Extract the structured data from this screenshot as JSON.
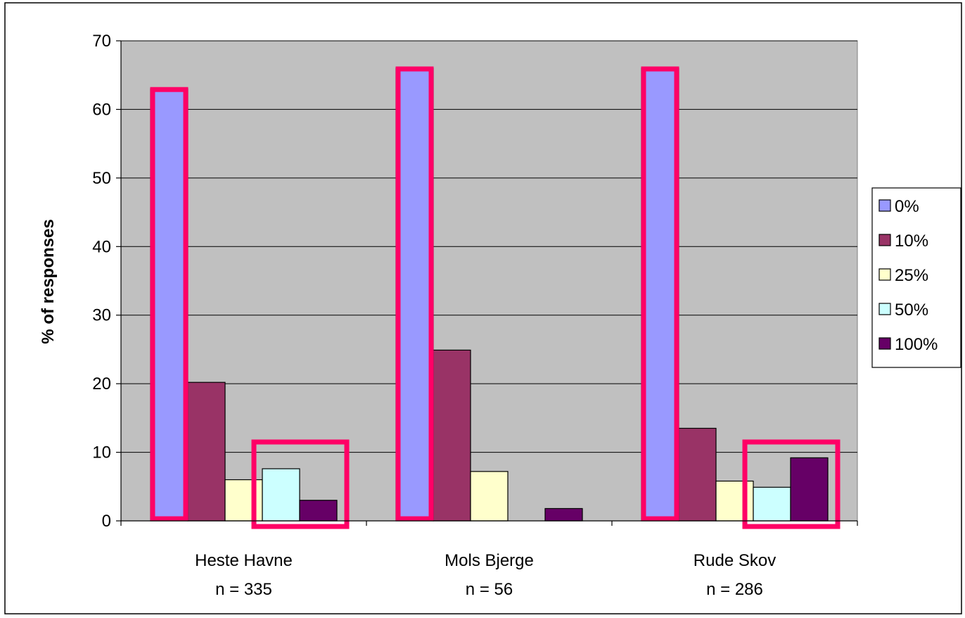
{
  "chart_data": {
    "type": "bar",
    "title": "",
    "xlabel": "",
    "ylabel": "% of responses",
    "ylim": [
      0,
      70
    ],
    "yticks": [
      0,
      10,
      20,
      30,
      40,
      50,
      60,
      70
    ],
    "grid": true,
    "legend_position": "right",
    "categories": [
      "Heste Havne",
      "Mols Bjerge",
      "Rude Skov"
    ],
    "category_sublabels": [
      "n = 335",
      "n = 56",
      "n = 286"
    ],
    "series": [
      {
        "name": "0%",
        "color": "#9999ff",
        "values": [
          63,
          66,
          66
        ]
      },
      {
        "name": "10%",
        "color": "#993366",
        "values": [
          20.2,
          24.9,
          13.5
        ]
      },
      {
        "name": "25%",
        "color": "#ffffcc",
        "values": [
          6,
          7.2,
          5.8
        ]
      },
      {
        "name": "50%",
        "color": "#ccffff",
        "values": [
          7.6,
          0,
          4.9
        ]
      },
      {
        "name": "100%",
        "color": "#660066",
        "values": [
          3,
          1.8,
          9.2
        ]
      }
    ],
    "highlight_color": "#ff0066",
    "plot_background": "#c0c0c0"
  }
}
